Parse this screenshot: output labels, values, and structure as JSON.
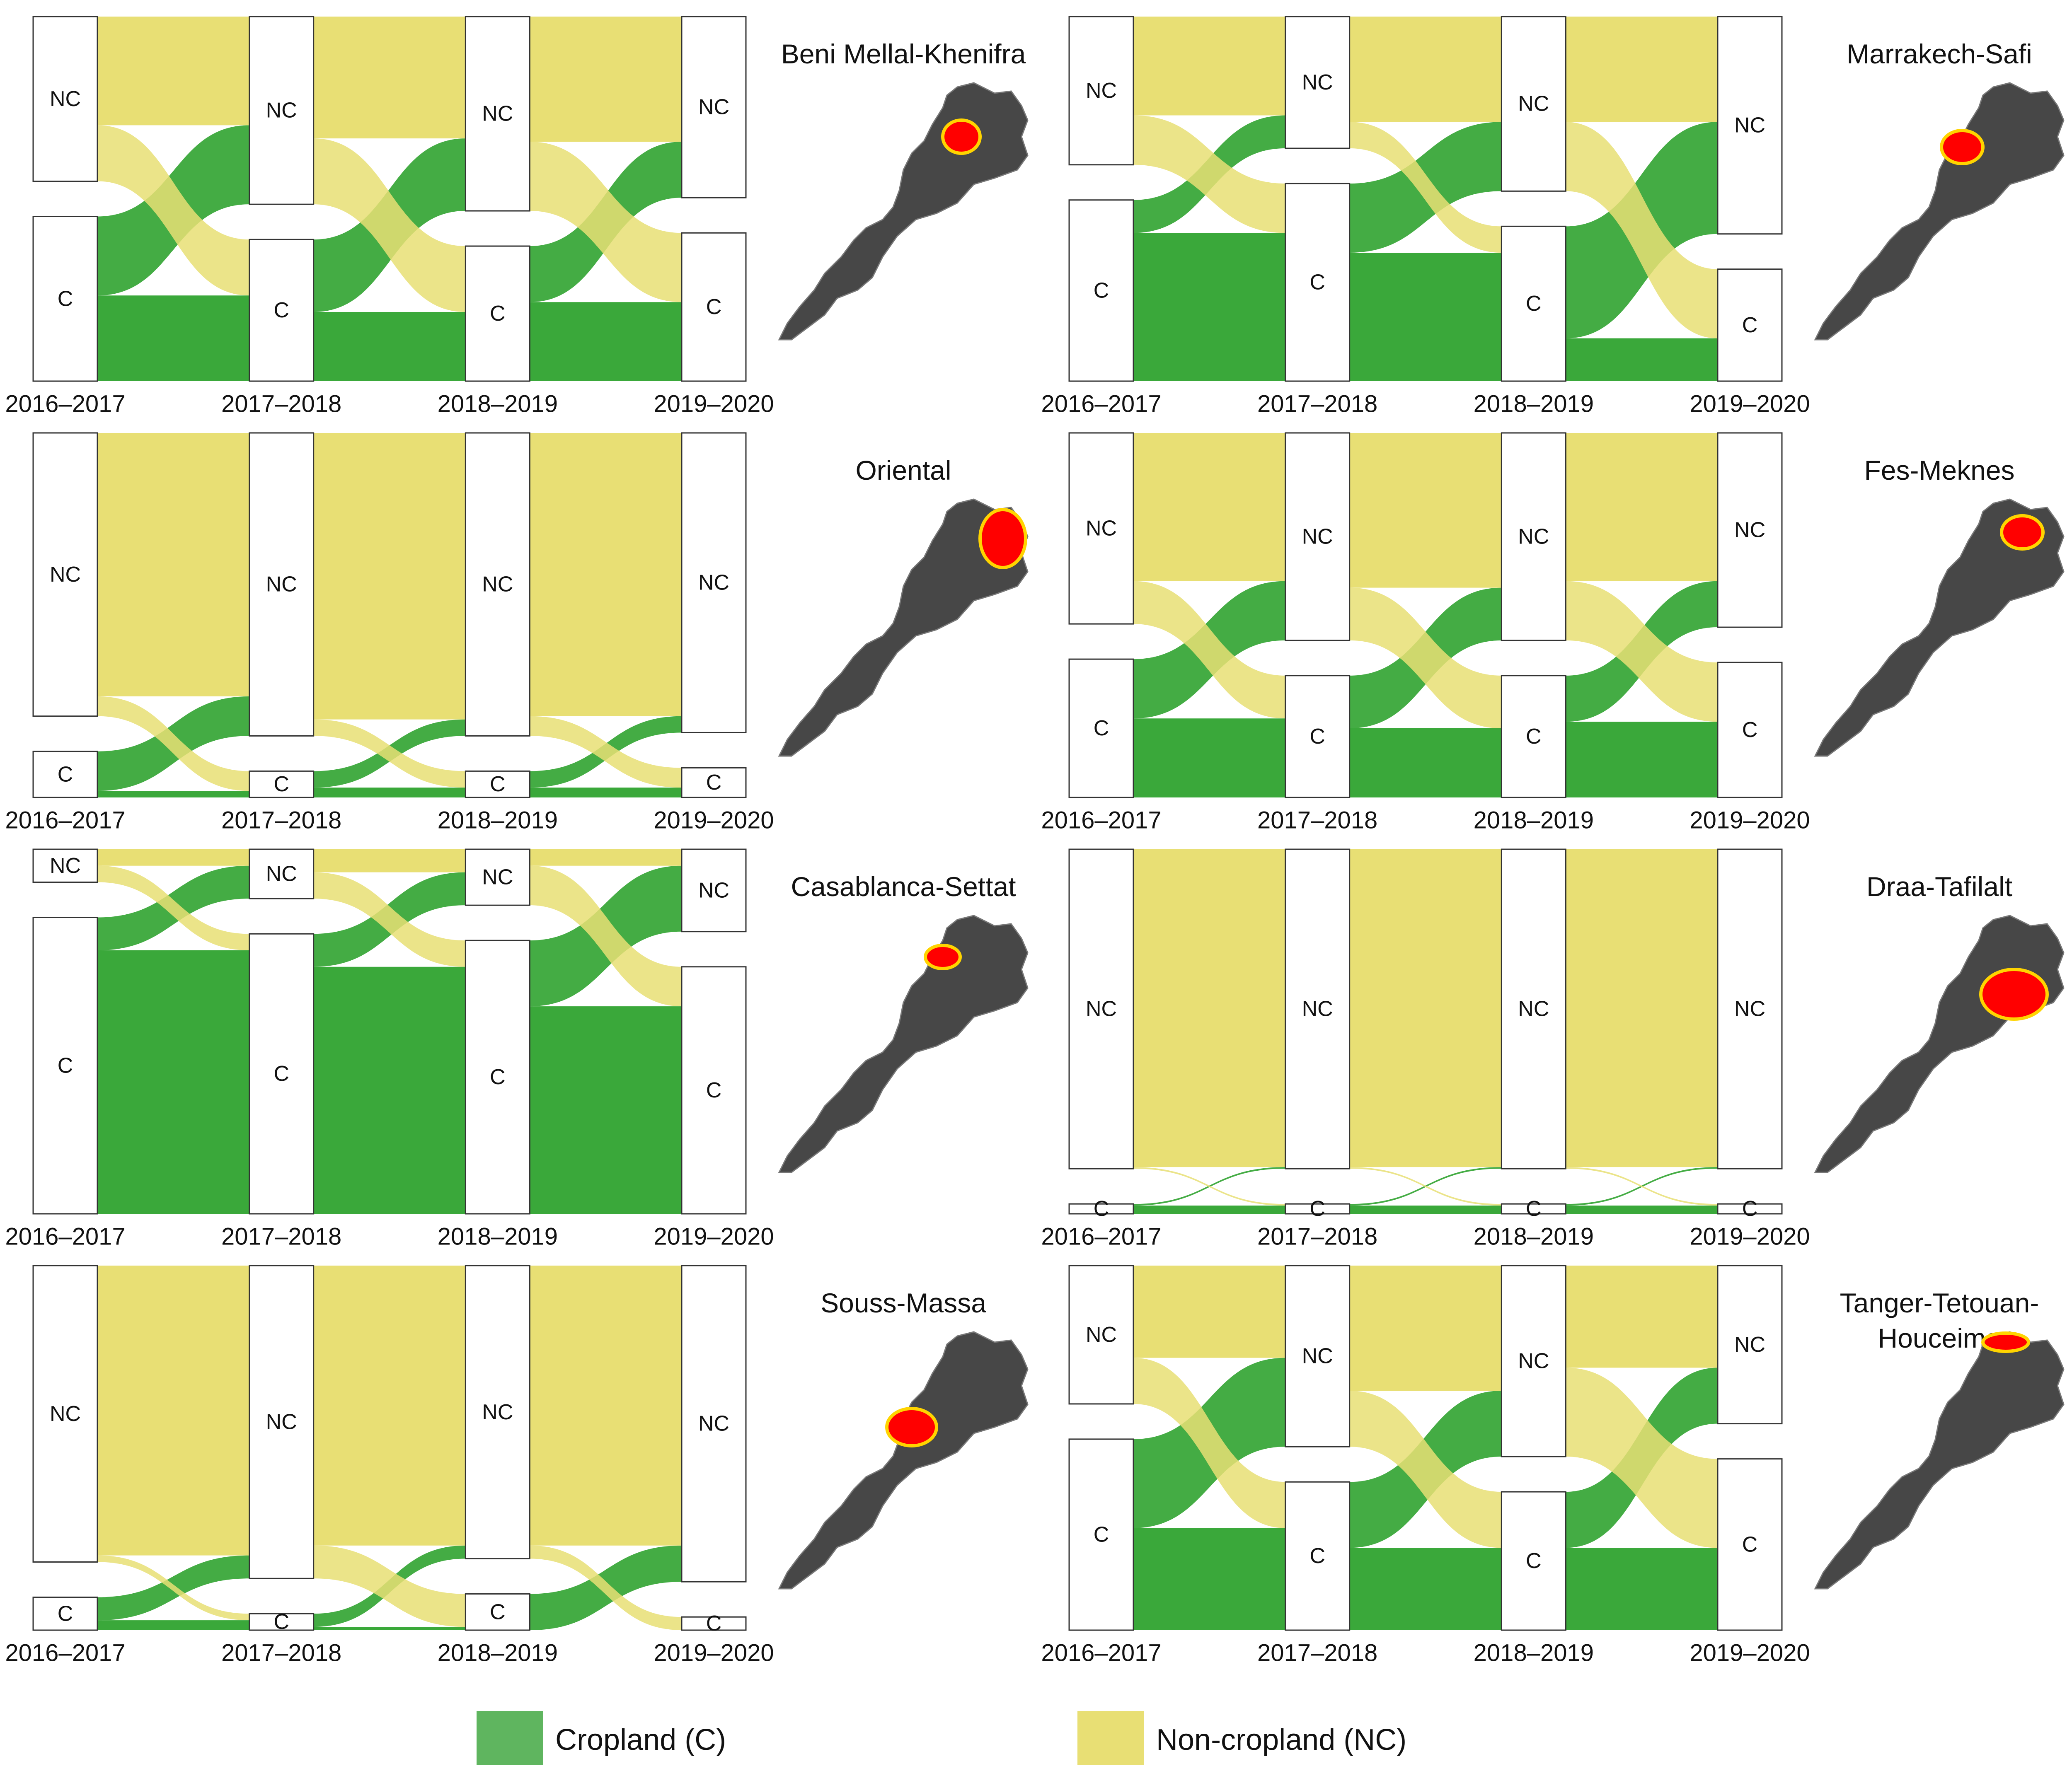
{
  "figure_description": "",
  "legend": {
    "items": [
      {
        "key": "C",
        "label": "Cropland (C)",
        "color": "#5fb55f"
      },
      {
        "key": "NC",
        "label": "Non-cropland (NC)",
        "color": "#e8df74"
      }
    ]
  },
  "colors": {
    "cropland": "#3aa83a",
    "cropland_light": "#8cc98c",
    "noncropland": "#e8df74",
    "noncropland_light": "#f0e9a8",
    "node_fill": "#ffffff",
    "node_stroke": "#333333",
    "map_land": "#474747",
    "map_region": "#ff0000",
    "map_region_edge": "#ffd400"
  },
  "chart_data": [
    {
      "type": "alluvial",
      "title": "Beni Mellal-Khenifra",
      "periods": [
        "2016–2017",
        "2017–2018",
        "2018–2019",
        "2019–2020"
      ],
      "node_labels": [
        "NC",
        "C"
      ],
      "nc_share": [
        0.5,
        0.57,
        0.59,
        0.55
      ],
      "transitions": [
        {
          "nc_to_nc": 0.33,
          "nc_to_c": 0.17,
          "c_to_nc": 0.24,
          "c_to_c": 0.26
        },
        {
          "nc_to_nc": 0.37,
          "nc_to_c": 0.2,
          "c_to_nc": 0.22,
          "c_to_c": 0.21
        },
        {
          "nc_to_nc": 0.38,
          "nc_to_c": 0.21,
          "c_to_nc": 0.17,
          "c_to_c": 0.24
        }
      ]
    },
    {
      "type": "alluvial",
      "title": "Marrakech-Safi",
      "periods": [
        "2016–2017",
        "2017–2018",
        "2018–2019",
        "2019–2020"
      ],
      "node_labels": [
        "NC",
        "C"
      ],
      "nc_share": [
        0.45,
        0.4,
        0.53,
        0.66
      ],
      "transitions": [
        {
          "nc_to_nc": 0.3,
          "nc_to_c": 0.15,
          "c_to_nc": 0.1,
          "c_to_c": 0.45
        },
        {
          "nc_to_nc": 0.32,
          "nc_to_c": 0.08,
          "c_to_nc": 0.21,
          "c_to_c": 0.39
        },
        {
          "nc_to_nc": 0.32,
          "nc_to_c": 0.21,
          "c_to_nc": 0.34,
          "c_to_c": 0.13
        }
      ]
    },
    {
      "type": "alluvial",
      "title": "Oriental",
      "periods": [
        "2016–2017",
        "2017–2018",
        "2018–2019",
        "2019–2020"
      ],
      "node_labels": [
        "NC",
        "C"
      ],
      "nc_share": [
        0.86,
        0.92,
        0.92,
        0.91
      ],
      "transitions": [
        {
          "nc_to_nc": 0.8,
          "nc_to_c": 0.06,
          "c_to_nc": 0.12,
          "c_to_c": 0.02
        },
        {
          "nc_to_nc": 0.87,
          "nc_to_c": 0.05,
          "c_to_nc": 0.05,
          "c_to_c": 0.03
        },
        {
          "nc_to_nc": 0.86,
          "nc_to_c": 0.06,
          "c_to_nc": 0.05,
          "c_to_c": 0.03
        }
      ]
    },
    {
      "type": "alluvial",
      "title": "Fes-Meknes",
      "periods": [
        "2016–2017",
        "2017–2018",
        "2018–2019",
        "2019–2020"
      ],
      "node_labels": [
        "NC",
        "C"
      ],
      "nc_share": [
        0.58,
        0.63,
        0.63,
        0.59
      ],
      "transitions": [
        {
          "nc_to_nc": 0.45,
          "nc_to_c": 0.13,
          "c_to_nc": 0.18,
          "c_to_c": 0.24
        },
        {
          "nc_to_nc": 0.47,
          "nc_to_c": 0.16,
          "c_to_nc": 0.16,
          "c_to_c": 0.21
        },
        {
          "nc_to_nc": 0.45,
          "nc_to_c": 0.18,
          "c_to_nc": 0.14,
          "c_to_c": 0.23
        }
      ]
    },
    {
      "type": "alluvial",
      "title": "Casablanca-Settat",
      "periods": [
        "2016–2017",
        "2017–2018",
        "2018–2019",
        "2019–2020"
      ],
      "node_labels": [
        "NC",
        "C"
      ],
      "nc_share": [
        0.1,
        0.15,
        0.17,
        0.25
      ],
      "transitions": [
        {
          "nc_to_nc": 0.05,
          "nc_to_c": 0.05,
          "c_to_nc": 0.1,
          "c_to_c": 0.8
        },
        {
          "nc_to_nc": 0.07,
          "nc_to_c": 0.08,
          "c_to_nc": 0.1,
          "c_to_c": 0.75
        },
        {
          "nc_to_nc": 0.05,
          "nc_to_c": 0.12,
          "c_to_nc": 0.2,
          "c_to_c": 0.63
        }
      ]
    },
    {
      "type": "alluvial",
      "title": "Draa-Tafilalt",
      "periods": [
        "2016–2017",
        "2017–2018",
        "2018–2019",
        "2019–2020"
      ],
      "node_labels": [
        "NC",
        "C"
      ],
      "nc_share": [
        0.97,
        0.97,
        0.97,
        0.97
      ],
      "transitions": [
        {
          "nc_to_nc": 0.965,
          "nc_to_c": 0.005,
          "c_to_nc": 0.005,
          "c_to_c": 0.025
        },
        {
          "nc_to_nc": 0.965,
          "nc_to_c": 0.005,
          "c_to_nc": 0.005,
          "c_to_c": 0.025
        },
        {
          "nc_to_nc": 0.965,
          "nc_to_c": 0.005,
          "c_to_nc": 0.005,
          "c_to_c": 0.025
        }
      ]
    },
    {
      "type": "alluvial",
      "title": "Souss-Massa",
      "periods": [
        "2016–2017",
        "2017–2018",
        "2018–2019",
        "2019–2020"
      ],
      "node_labels": [
        "NC",
        "C"
      ],
      "nc_share": [
        0.9,
        0.95,
        0.89,
        0.96
      ],
      "transitions": [
        {
          "nc_to_nc": 0.88,
          "nc_to_c": 0.02,
          "c_to_nc": 0.07,
          "c_to_c": 0.03
        },
        {
          "nc_to_nc": 0.85,
          "nc_to_c": 0.1,
          "c_to_nc": 0.04,
          "c_to_c": 0.01
        },
        {
          "nc_to_nc": 0.85,
          "nc_to_c": 0.04,
          "c_to_nc": 0.11,
          "c_to_c": 0.0
        }
      ]
    },
    {
      "type": "alluvial",
      "title": "Tanger-Tetouan-Houceima",
      "periods": [
        "2016–2017",
        "2017–2018",
        "2018–2019",
        "2019–2020"
      ],
      "node_labels": [
        "NC",
        "C"
      ],
      "nc_share": [
        0.42,
        0.55,
        0.58,
        0.48
      ],
      "transitions": [
        {
          "nc_to_nc": 0.28,
          "nc_to_c": 0.14,
          "c_to_nc": 0.27,
          "c_to_c": 0.31
        },
        {
          "nc_to_nc": 0.38,
          "nc_to_c": 0.17,
          "c_to_nc": 0.2,
          "c_to_c": 0.25
        },
        {
          "nc_to_nc": 0.31,
          "nc_to_c": 0.27,
          "c_to_nc": 0.17,
          "c_to_c": 0.25
        }
      ]
    }
  ]
}
